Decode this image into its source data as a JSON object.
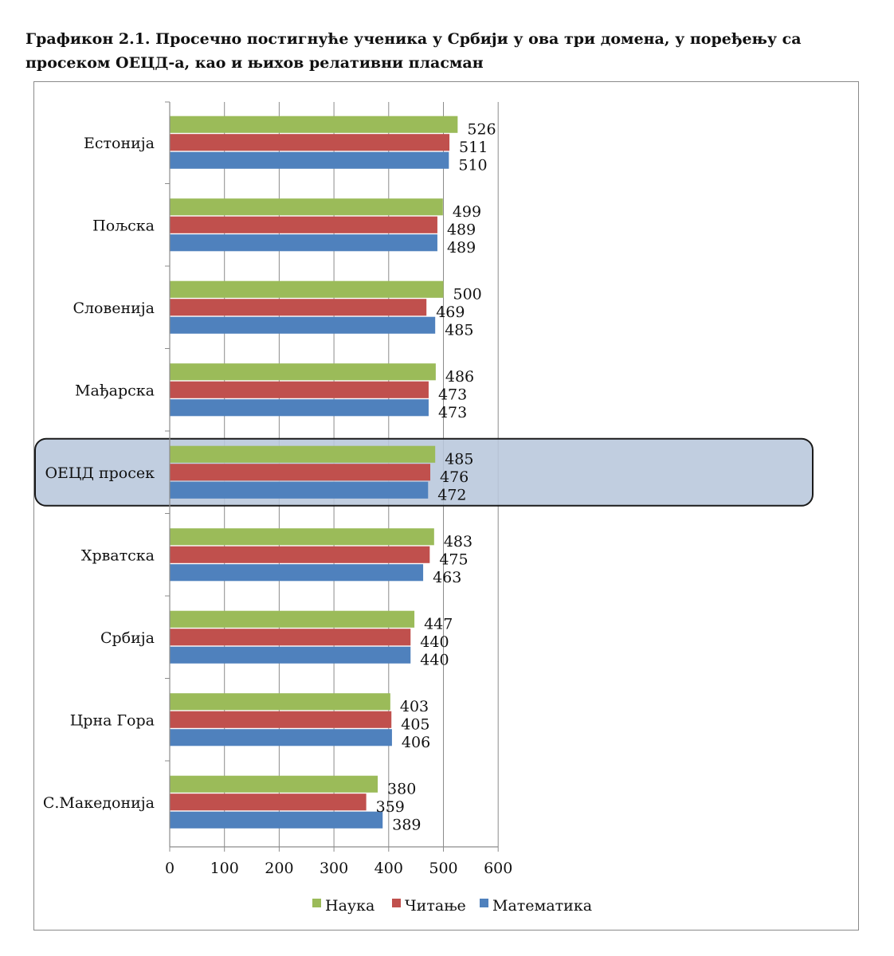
{
  "figure": {
    "caption": "Графикон 2.1. Просечно постигнуће ученика у Србији у ова три домена, у поређењу са просеком ОЕЦД-а, као и њихов релативни пласман"
  },
  "chart_data": {
    "type": "bar",
    "orientation": "horizontal",
    "categories": [
      "Естонија",
      "Пољска",
      "Словенија",
      "Мађарска",
      "ОЕЦД просек",
      "Хрватска",
      "Србија",
      "Црна Гора",
      "С.Македонија"
    ],
    "series": [
      {
        "name": "Наука",
        "color": "#9bbb59",
        "values": [
          526,
          499,
          500,
          486,
          485,
          483,
          447,
          403,
          380
        ]
      },
      {
        "name": "Читање",
        "color": "#c0504d",
        "values": [
          511,
          489,
          469,
          473,
          476,
          475,
          440,
          405,
          359
        ]
      },
      {
        "name": "Математика",
        "color": "#4f81bd",
        "values": [
          510,
          489,
          485,
          473,
          472,
          463,
          440,
          406,
          389
        ]
      }
    ],
    "xlim": [
      0,
      600
    ],
    "x_ticks": [
      0,
      100,
      200,
      300,
      400,
      500,
      600
    ],
    "grid": true,
    "data_labels": true,
    "legend_position": "bottom",
    "highlighted_category": "ОЕЦД просек",
    "highlight_color": "#b8c7dc"
  }
}
